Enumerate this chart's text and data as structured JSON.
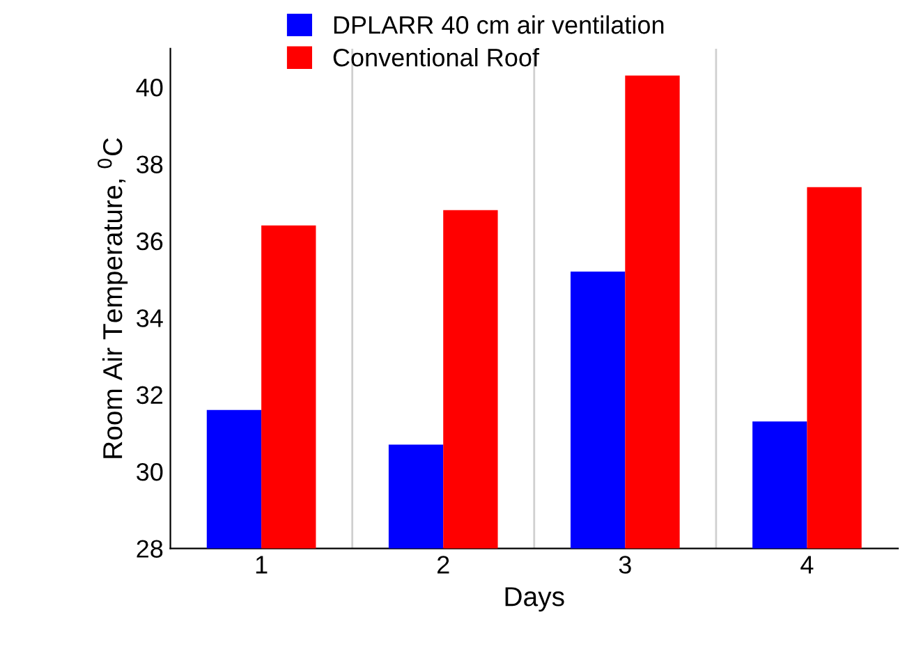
{
  "chart_data": {
    "type": "bar",
    "xlabel": "Days",
    "ylabel": "Room Air Temperature, $^{0}$C",
    "categories": [
      "1",
      "2",
      "3",
      "4"
    ],
    "series": [
      {
        "name": "DPLARR 40 cm air ventilation",
        "color": "#0000ff",
        "values": [
          31.6,
          30.7,
          35.2,
          31.3
        ]
      },
      {
        "name": "Conventional Roof",
        "color": "#ff0000",
        "values": [
          36.4,
          36.8,
          40.3,
          37.4
        ]
      }
    ],
    "ylim": [
      28,
      41
    ],
    "yticks": [
      28,
      30,
      32,
      34,
      36,
      38,
      40
    ],
    "grid": "x",
    "legend": "top"
  }
}
